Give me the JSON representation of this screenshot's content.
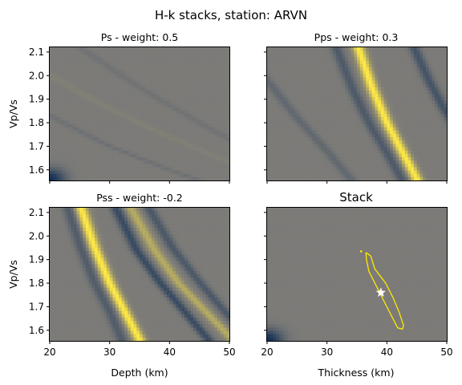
{
  "figure": {
    "suptitle": "H-k stacks, station: ARVN"
  },
  "colors": {
    "colormap": "cividis",
    "background": "#7c7b78",
    "contour": "#ffea00",
    "marker": "#ffffff"
  },
  "chart_data": [
    {
      "type": "heatmap",
      "title": "Ps - weight: 0.5",
      "xlabel": "",
      "ylabel": "Vp/Vs",
      "xlim": [
        20,
        50
      ],
      "ylim": [
        1.555,
        2.12
      ],
      "xticks": [
        20,
        30,
        40,
        50
      ],
      "yticks": [
        1.6,
        1.7,
        1.8,
        1.9,
        2.0,
        2.1
      ],
      "show_xticklabels": false,
      "show_yticklabels": true,
      "features": [
        {
          "kind": "corner-negative",
          "x": 20,
          "y": 1.56,
          "amplitude": -0.85
        },
        {
          "kind": "band",
          "amplitude": -0.12,
          "points": [
            [
              20,
              1.83
            ],
            [
              30,
              1.7
            ],
            [
              40,
              1.6
            ],
            [
              45,
              1.555
            ]
          ]
        },
        {
          "kind": "band",
          "amplitude": -0.1,
          "points": [
            [
              25,
              2.12
            ],
            [
              35,
              1.95
            ],
            [
              45,
              1.8
            ],
            [
              50,
              1.73
            ]
          ]
        },
        {
          "kind": "band",
          "amplitude": 0.05,
          "points": [
            [
              20,
              2.0
            ],
            [
              30,
              1.86
            ],
            [
              40,
              1.74
            ],
            [
              50,
              1.63
            ]
          ]
        }
      ]
    },
    {
      "type": "heatmap",
      "title": "Pps - weight: 0.3",
      "xlabel": "",
      "ylabel": "",
      "xlim": [
        20,
        50
      ],
      "ylim": [
        1.555,
        2.12
      ],
      "xticks": [
        20,
        30,
        40,
        50
      ],
      "yticks": [
        1.6,
        1.7,
        1.8,
        1.9,
        2.0,
        2.1
      ],
      "show_xticklabels": false,
      "show_yticklabels": false,
      "features": [
        {
          "kind": "band",
          "amplitude": 1.0,
          "points": [
            [
              35.2,
              2.12
            ],
            [
              37.5,
              1.95
            ],
            [
              40.0,
              1.8
            ],
            [
              42.5,
              1.68
            ],
            [
              45.0,
              1.56
            ]
          ]
        },
        {
          "kind": "band",
          "amplitude": -0.38,
          "points": [
            [
              31.5,
              2.12
            ],
            [
              34.5,
              1.93
            ],
            [
              37.0,
              1.8
            ],
            [
              40.5,
              1.65
            ],
            [
              42.5,
              1.56
            ]
          ]
        },
        {
          "kind": "band",
          "amplitude": -0.45,
          "points": [
            [
              44.5,
              2.12
            ],
            [
              47.0,
              1.98
            ],
            [
              49.5,
              1.86
            ],
            [
              51,
              1.8
            ]
          ]
        },
        {
          "kind": "band",
          "amplitude": -0.22,
          "points": [
            [
              20,
              1.98
            ],
            [
              25,
              1.82
            ],
            [
              30,
              1.68
            ],
            [
              34,
              1.56
            ]
          ]
        }
      ]
    },
    {
      "type": "heatmap",
      "title": "Pss - weight: -0.2",
      "xlabel": "Depth (km)",
      "ylabel": "Vp/Vs",
      "xlim": [
        20,
        50
      ],
      "ylim": [
        1.555,
        2.12
      ],
      "xticks": [
        20,
        30,
        40,
        50
      ],
      "yticks": [
        1.6,
        1.7,
        1.8,
        1.9,
        2.0,
        2.1
      ],
      "show_xticklabels": true,
      "show_yticklabels": true,
      "features": [
        {
          "kind": "band",
          "amplitude": 1.0,
          "points": [
            [
              25.2,
              2.12
            ],
            [
              27.5,
              1.95
            ],
            [
              30.0,
              1.8
            ],
            [
              32.5,
              1.68
            ],
            [
              35.0,
              1.56
            ]
          ]
        },
        {
          "kind": "band",
          "amplitude": -0.35,
          "points": [
            [
              23.0,
              2.12
            ],
            [
              25.2,
              1.95
            ],
            [
              27.5,
              1.8
            ],
            [
              30.0,
              1.68
            ],
            [
              32.0,
              1.56
            ]
          ]
        },
        {
          "kind": "band",
          "amplitude": -0.55,
          "points": [
            [
              31.0,
              2.12
            ],
            [
              34.5,
              1.94
            ],
            [
              38.5,
              1.8
            ],
            [
              42.5,
              1.68
            ],
            [
              46.5,
              1.56
            ]
          ]
        },
        {
          "kind": "band",
          "amplitude": 0.45,
          "points": [
            [
              33.5,
              2.12
            ],
            [
              37.5,
              1.94
            ],
            [
              41.5,
              1.8
            ],
            [
              46.0,
              1.68
            ],
            [
              50.5,
              1.56
            ]
          ]
        },
        {
          "kind": "band",
          "amplitude": -0.4,
          "points": [
            [
              36.5,
              2.12
            ],
            [
              40.5,
              1.95
            ],
            [
              44.5,
              1.82
            ],
            [
              48.5,
              1.7
            ],
            [
              51,
              1.63
            ]
          ]
        }
      ]
    },
    {
      "type": "heatmap",
      "title": "Stack",
      "xlabel": "Thickness (km)",
      "ylabel": "",
      "xlim": [
        20,
        50
      ],
      "ylim": [
        1.555,
        2.12
      ],
      "xticks": [
        20,
        30,
        40,
        50
      ],
      "yticks": [
        1.6,
        1.7,
        1.8,
        1.9,
        2.0,
        2.1
      ],
      "show_xticklabels": true,
      "show_yticklabels": false,
      "features": [
        {
          "kind": "corner-negative",
          "x": 20,
          "y": 1.56,
          "amplitude": -0.85
        }
      ],
      "contour": [
        [
          36.5,
          1.93
        ],
        [
          37.3,
          1.915
        ],
        [
          38.0,
          1.86
        ],
        [
          39.8,
          1.8
        ],
        [
          41.0,
          1.74
        ],
        [
          42.0,
          1.68
        ],
        [
          42.8,
          1.62
        ],
        [
          42.6,
          1.605
        ],
        [
          41.8,
          1.61
        ],
        [
          41.0,
          1.65
        ],
        [
          39.8,
          1.71
        ],
        [
          38.8,
          1.76
        ],
        [
          37.8,
          1.81
        ],
        [
          37.0,
          1.85
        ],
        [
          36.6,
          1.9
        ],
        [
          36.5,
          1.93
        ]
      ],
      "contour_dot": {
        "x": 35.7,
        "y": 1.935
      },
      "best_estimate": {
        "x": 39.0,
        "y": 1.76
      }
    }
  ]
}
